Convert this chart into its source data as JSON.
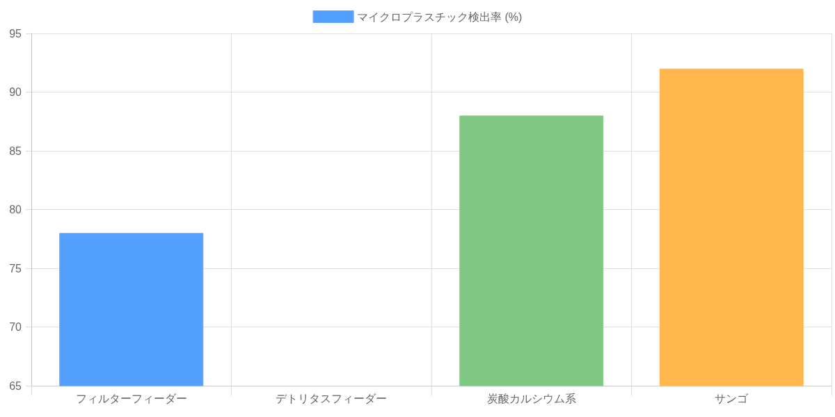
{
  "chart_data": {
    "type": "bar",
    "categories": [
      "フィルターフィーダー",
      "デトリタスフィーダー",
      "炭酸カルシウム系",
      "サンゴ"
    ],
    "series": [
      {
        "name": "マイクロプラスチック検出率 (%)",
        "color": "#54a0ff",
        "colors": [
          "#54a0ff",
          null,
          "#81c784",
          "#ffb74d"
        ],
        "values": [
          78,
          null,
          88,
          92
        ]
      }
    ],
    "ylim": [
      65,
      95
    ],
    "yticks": [
      65,
      70,
      75,
      80,
      85,
      90,
      95
    ],
    "grid": true,
    "legend": "top"
  }
}
